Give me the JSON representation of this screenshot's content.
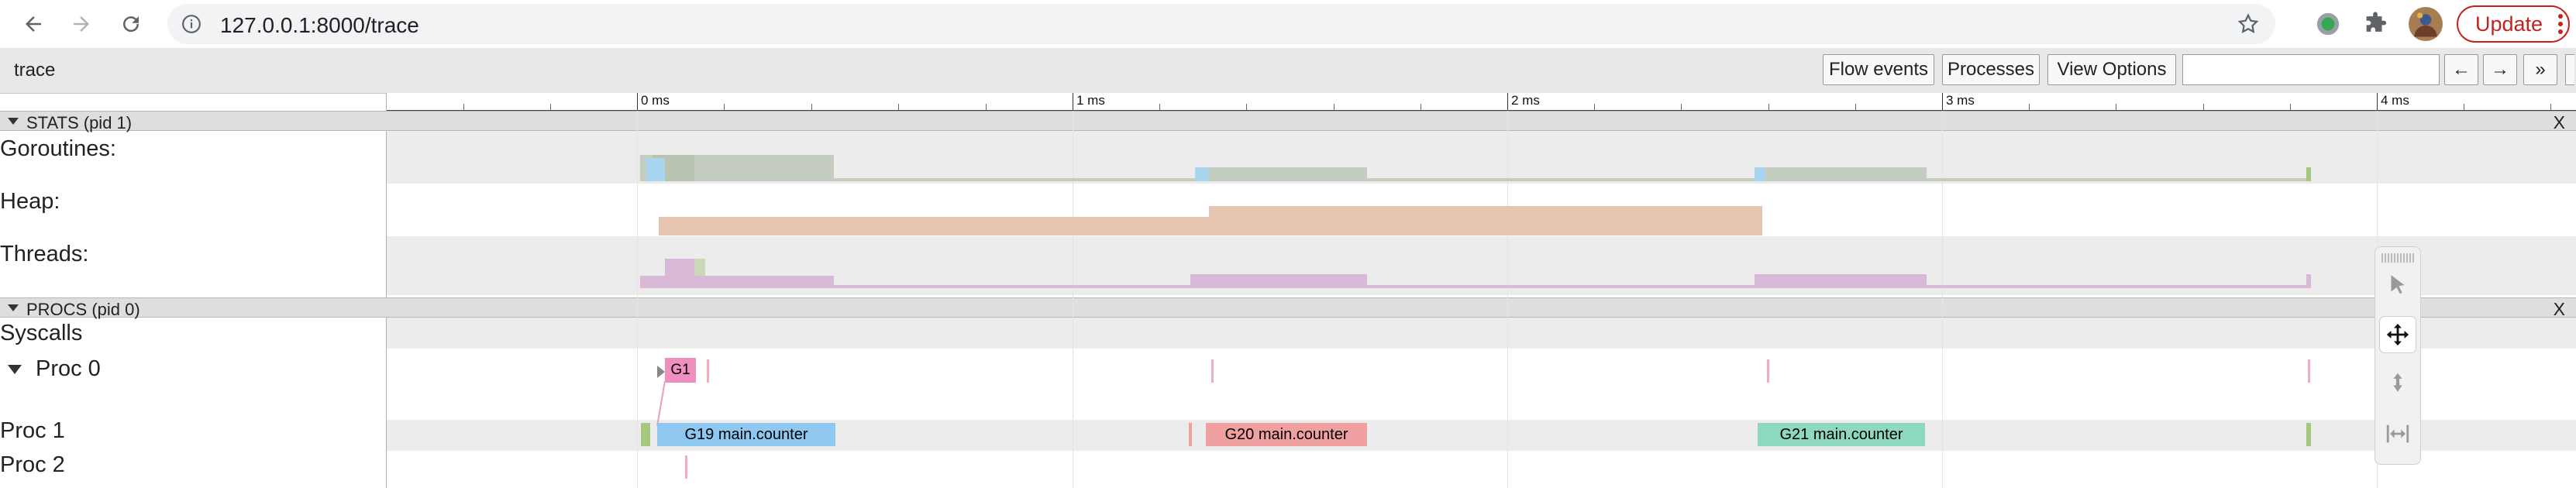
{
  "browser": {
    "url": "127.0.0.1:8000/trace",
    "update_label": "Update"
  },
  "toolbar": {
    "title": "trace",
    "buttons": [
      {
        "name": "flow-events-button",
        "label": "Flow events"
      },
      {
        "name": "processes-button",
        "label": "Processes"
      },
      {
        "name": "view-options-button",
        "label": "View Options"
      }
    ],
    "search_value": "",
    "prev_label": "←",
    "next_label": "→",
    "more_label": "»"
  },
  "ruler": {
    "labels": [
      "0 ms",
      "1 ms",
      "2 ms",
      "3 ms",
      "4 ms"
    ]
  },
  "groups": {
    "stats": {
      "title": "STATS (pid 1)",
      "close": "X"
    },
    "procs": {
      "title": "PROCS (pid 0)",
      "close": "X"
    }
  },
  "tracks": {
    "goroutines": "Goroutines:",
    "heap": "Heap:",
    "threads": "Threads:",
    "syscalls": "Syscalls",
    "proc0": "Proc 0",
    "proc1": "Proc 1",
    "proc2": "Proc 2"
  },
  "slices": {
    "proc0_g1": "G1",
    "g19": "G19 main.counter",
    "g20": "G20 main.counter",
    "g21": "G21 main.counter"
  },
  "colors": {
    "goroutines_gray": "#c4cdbf",
    "goroutines_blue": "#a9d6ee",
    "heap": "#e6c4b0",
    "threads": "#d9b9d8",
    "g1": "#ef8fc0",
    "g19": "#8ec8f0",
    "g20": "#f0a0a0",
    "g21": "#8fd8c0",
    "green_mark": "#a6c87e"
  }
}
